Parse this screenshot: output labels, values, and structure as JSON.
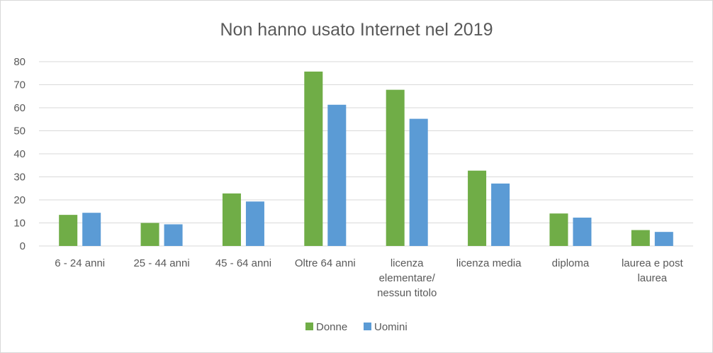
{
  "chart_data": {
    "type": "bar",
    "title": "Non hanno usato Internet nel 2019",
    "xlabel": "",
    "ylabel": "",
    "ylim": [
      0,
      80
    ],
    "yticks": [
      0,
      10,
      20,
      30,
      40,
      50,
      60,
      70,
      80
    ],
    "grid": true,
    "legend_position": "bottom",
    "categories": [
      [
        "6 - 24 anni"
      ],
      [
        "25 - 44 anni"
      ],
      [
        "45 - 64 anni"
      ],
      [
        "Oltre 64 anni"
      ],
      [
        "licenza",
        "elementare/",
        "nessun titolo"
      ],
      [
        "licenza media"
      ],
      [
        "diploma"
      ],
      [
        "laurea e post",
        "laurea"
      ]
    ],
    "series": [
      {
        "name": "Donne",
        "color": "#70ad47",
        "values": [
          13.5,
          10,
          22.8,
          75.7,
          67.8,
          32.7,
          14.1,
          6.9
        ]
      },
      {
        "name": "Uomini",
        "color": "#5b9bd5",
        "values": [
          14.4,
          9.4,
          19.3,
          61.3,
          55.2,
          27.1,
          12.3,
          6.1
        ]
      }
    ]
  }
}
